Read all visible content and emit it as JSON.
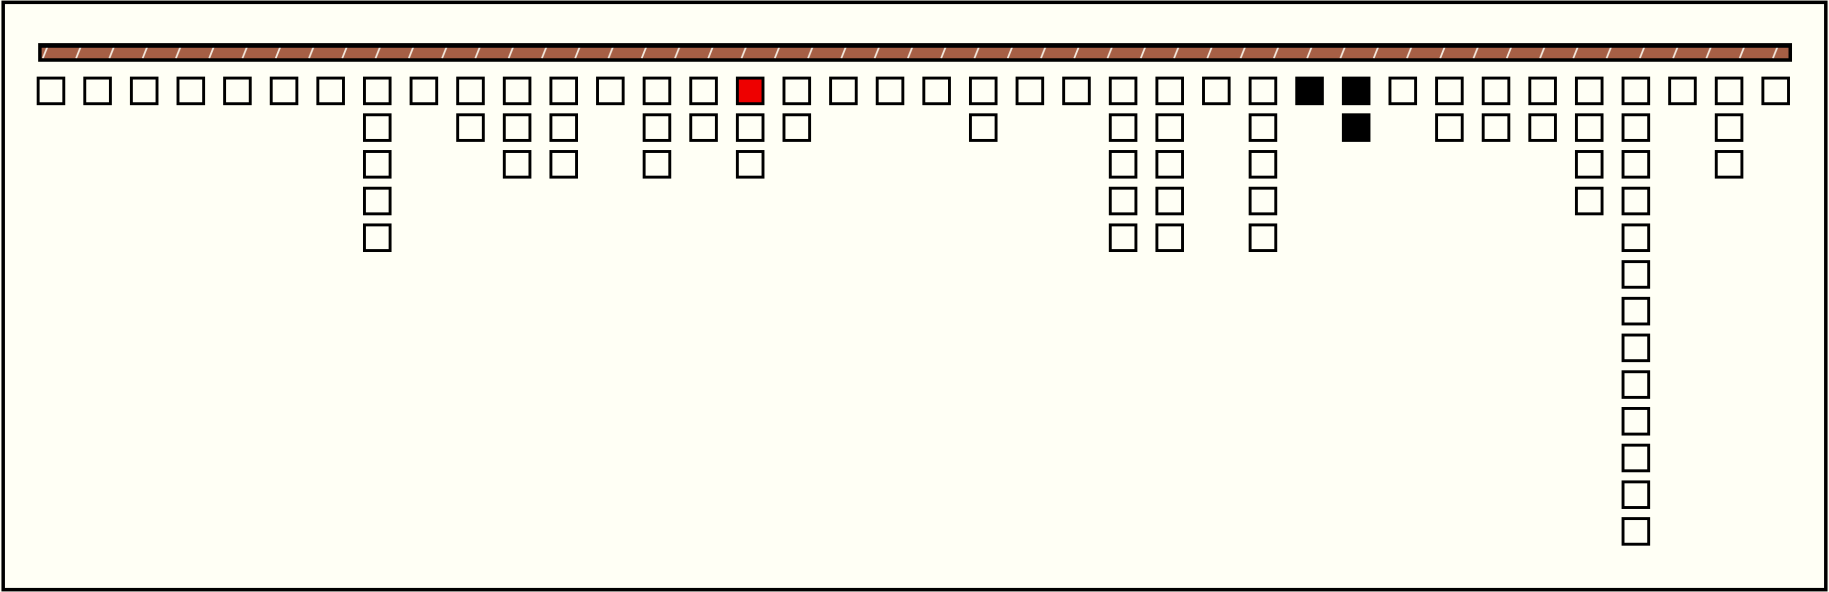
{
  "columns": [
    1,
    1,
    1,
    1,
    1,
    1,
    1,
    5,
    1,
    2,
    3,
    3,
    1,
    3,
    2,
    3,
    2,
    1,
    1,
    1,
    2,
    1,
    1,
    5,
    5,
    1,
    5,
    1,
    2,
    1,
    2,
    2,
    2,
    4,
    13,
    1,
    3,
    1
  ],
  "highlights": [
    {
      "column": 15,
      "row": 0,
      "color": "#ee0000"
    },
    {
      "column": 27,
      "row": 0,
      "color": "#000000"
    },
    {
      "column": 28,
      "row": 0,
      "color": "#000000"
    },
    {
      "column": 28,
      "row": 1,
      "color": "#000000"
    }
  ]
}
